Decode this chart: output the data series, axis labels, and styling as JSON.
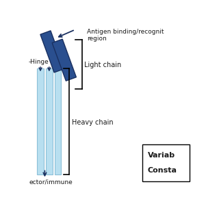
{
  "bg_color": "#ffffff",
  "light_bar_color": "#b8dff0",
  "light_bar_edge": "#8bbfd8",
  "dark_bar_color": "#2a4f8f",
  "dark_bar_edge": "#1a3060",
  "arrow_color": "#1a3060",
  "text_color": "#1a1a1a",
  "label_hinge": "-Hinge",
  "label_antigen": "Antigen binding/recognit\nregion",
  "label_light": "Light chain",
  "label_heavy": "Heavy chain",
  "label_effector": "ector/immune",
  "legend_variable": "Variab",
  "legend_constant": "Consta"
}
